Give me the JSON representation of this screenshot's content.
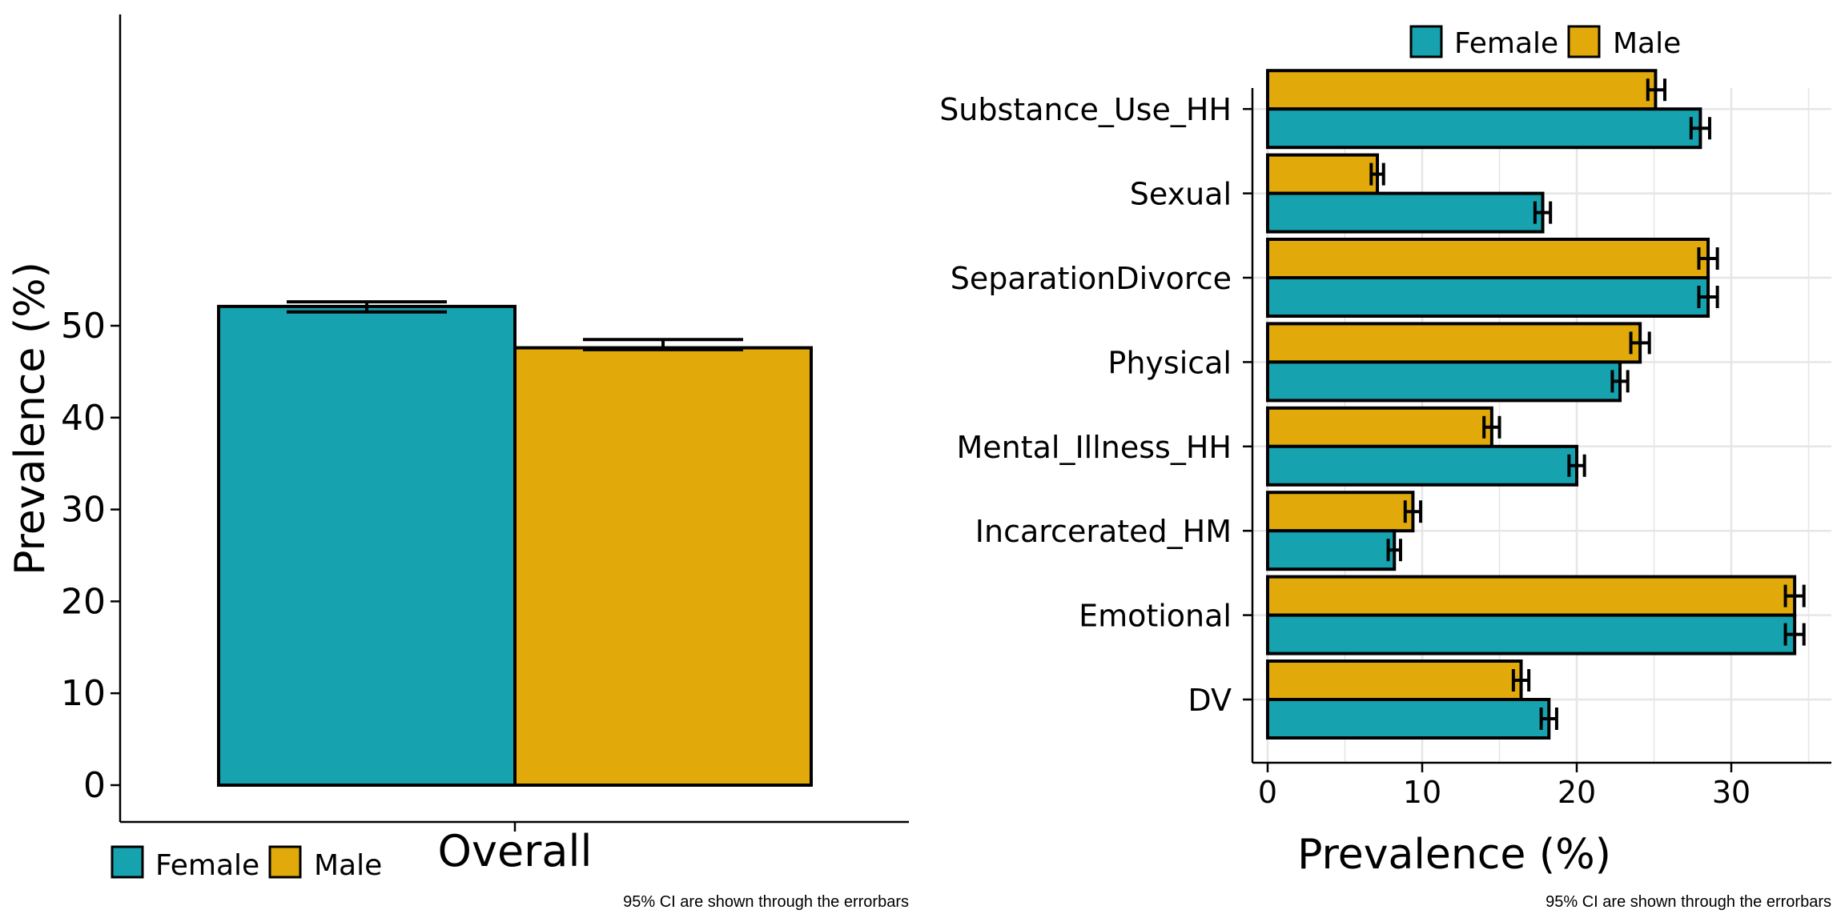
{
  "colors": {
    "female": "#17A2AF",
    "male": "#E1AA0A",
    "outline": "#000000",
    "grid": "#E6E6E6"
  },
  "chart_data": [
    {
      "type": "bar",
      "orientation": "vertical",
      "categories": [
        "Overall"
      ],
      "series": [
        {
          "name": "Female",
          "values": [
            52.1
          ],
          "ci_low": [
            51.5
          ],
          "ci_high": [
            52.6
          ]
        },
        {
          "name": "Male",
          "values": [
            47.6
          ],
          "ci_low": [
            47.4
          ],
          "ci_high": [
            48.5
          ]
        }
      ],
      "ylabel": "Prevalence (%)",
      "xlabel": "",
      "ylim": [
        0,
        55
      ],
      "yticks": [
        0,
        10,
        20,
        30,
        40,
        50
      ],
      "grid": false,
      "legend": {
        "placement": "bottom-left",
        "entries": [
          "Female",
          "Male"
        ]
      },
      "caption": "95% CI are shown through the errorbars"
    },
    {
      "type": "bar",
      "orientation": "horizontal",
      "categories": [
        "Substance_Use_HH",
        "Sexual",
        "SeparationDivorce",
        "Physical",
        "Mental_Illness_HH",
        "Incarcerated_HM",
        "Emotional",
        "DV"
      ],
      "series": [
        {
          "name": "Female",
          "values": [
            28.0,
            17.8,
            28.5,
            22.8,
            20.0,
            8.2,
            34.1,
            18.2
          ],
          "ci_low": [
            27.4,
            17.3,
            27.9,
            22.3,
            19.5,
            7.8,
            33.5,
            17.7
          ],
          "ci_high": [
            28.6,
            18.3,
            29.1,
            23.3,
            20.5,
            8.6,
            34.7,
            18.7
          ]
        },
        {
          "name": "Male",
          "values": [
            25.1,
            7.1,
            28.5,
            24.1,
            14.5,
            9.4,
            34.1,
            16.4
          ],
          "ci_low": [
            24.6,
            6.7,
            27.9,
            23.5,
            14.0,
            8.9,
            33.5,
            15.9
          ],
          "ci_high": [
            25.7,
            7.5,
            29.1,
            24.7,
            15.0,
            9.9,
            34.7,
            16.9
          ]
        }
      ],
      "xlabel": "Prevalence (%)",
      "ylabel": "",
      "xlim": [
        -0.8,
        36.3
      ],
      "xticks": [
        0,
        10,
        20,
        30
      ],
      "grid": true,
      "legend": {
        "placement": "top-center",
        "entries": [
          "Female",
          "Male"
        ]
      },
      "caption": "95% CI are shown through the errorbars"
    }
  ]
}
